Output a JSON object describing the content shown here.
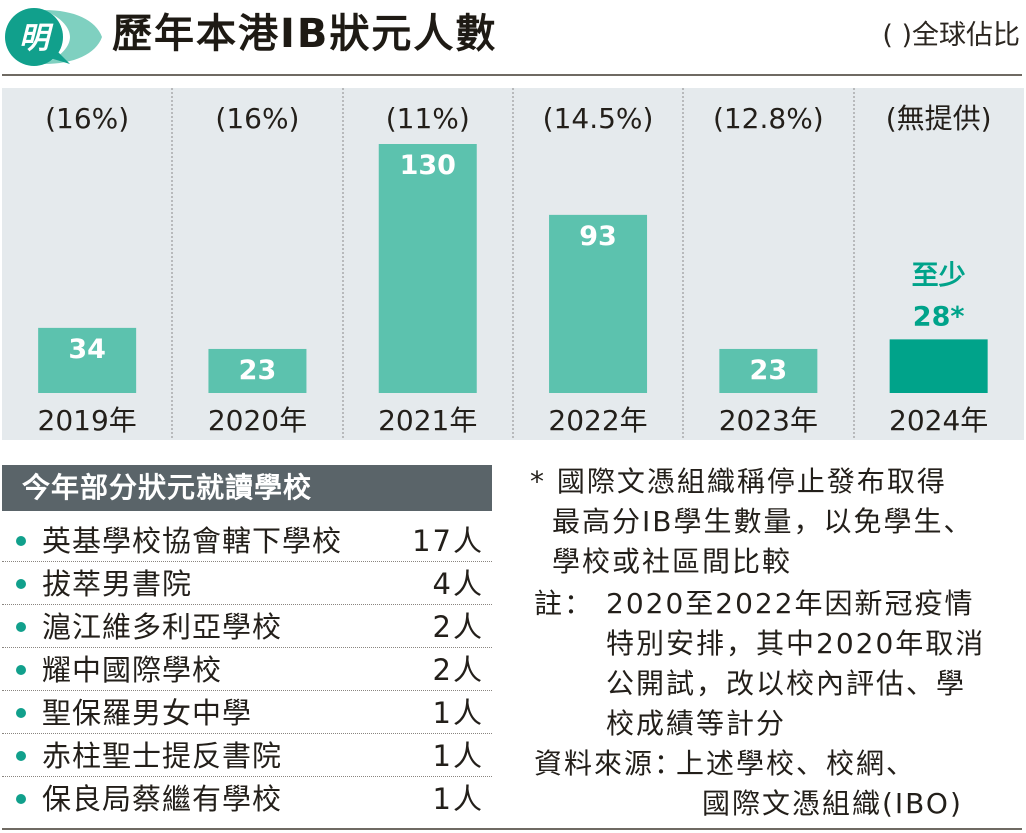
{
  "header": {
    "logo_char": "明",
    "title": "歷年本港IB狀元人數",
    "legend_note": "( )全球佔比"
  },
  "colors": {
    "bar": "#5cc2ae",
    "bar_highlight": "#00a38a",
    "panel_bg": "#e5eaed",
    "highlight_text": "#00a38a",
    "section_header_bg": "#5a6469",
    "bullet": "#11a08c"
  },
  "chart_data": {
    "type": "bar",
    "title": "歷年本港IB狀元人數",
    "categories": [
      "2019年",
      "2020年",
      "2021年",
      "2022年",
      "2023年",
      "2024年"
    ],
    "values": [
      34,
      23,
      130,
      93,
      23,
      28
    ],
    "value_labels": [
      "34",
      "23",
      "130",
      "93",
      "23",
      "28*"
    ],
    "value_prefix_labels": [
      "",
      "",
      "",
      "",
      "",
      "至少"
    ],
    "global_share_labels": [
      "(16%)",
      "(16%)",
      "(11%)",
      "(14.5%)",
      "(12.8%)",
      "(無提供)"
    ],
    "highlight_index": 5,
    "xlabel": "",
    "ylabel": "",
    "ylim": [
      0,
      130
    ],
    "grid": false,
    "legend": "top-right"
  },
  "schools": {
    "header": "今年部分狀元就讀學校",
    "items": [
      {
        "name": "英基學校協會轄下學校",
        "count": "17人"
      },
      {
        "name": "拔萃男書院",
        "count": "4人"
      },
      {
        "name": "滬江維多利亞學校",
        "count": "2人"
      },
      {
        "name": "耀中國際學校",
        "count": "2人"
      },
      {
        "name": "聖保羅男女中學",
        "count": "1人"
      },
      {
        "name": "赤柱聖士提反書院",
        "count": "1人"
      },
      {
        "name": "保良局蔡繼有學校",
        "count": "1人"
      }
    ]
  },
  "notes": {
    "footnote_lines": [
      "* 國際文憑組織稱停止發布取得",
      "最高分IB學生數量，以免學生、",
      "學校或社區間比較"
    ],
    "remark_label": "註：",
    "remark_lines": [
      "2020至2022年因新冠疫情",
      "特別安排，其中2020年取消",
      "公開試，改以校內評估、學",
      "校成績等計分"
    ],
    "source_label": "資料來源：",
    "source_lines": [
      "上述學校、校網、",
      "國際文憑組織(IBO)"
    ]
  }
}
